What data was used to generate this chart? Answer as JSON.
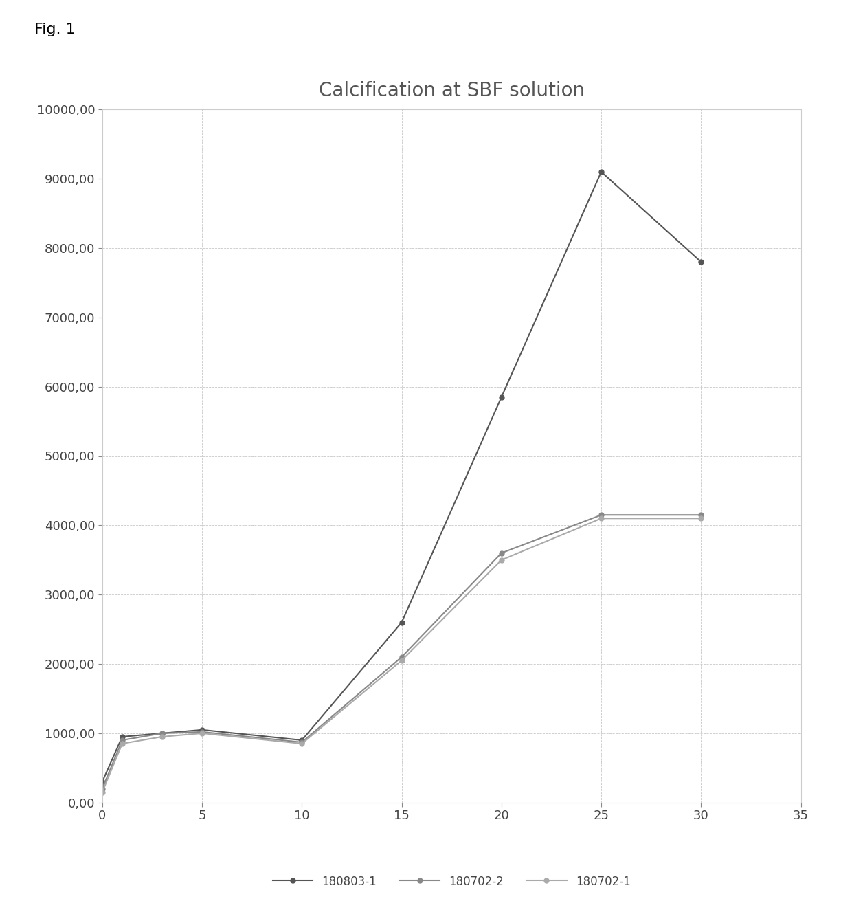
{
  "title": "Calcification at SBF solution",
  "fig_label": "Fig. 1",
  "series": [
    {
      "label": "180803-1",
      "x": [
        0,
        1,
        3,
        5,
        10,
        15,
        20,
        25,
        30
      ],
      "y": [
        300,
        950,
        1000,
        1050,
        900,
        2600,
        5850,
        9100,
        7800
      ],
      "color": "#555555",
      "marker": "o",
      "linewidth": 1.5
    },
    {
      "label": "180702-2",
      "x": [
        0,
        1,
        3,
        5,
        10,
        15,
        20,
        25,
        30
      ],
      "y": [
        200,
        900,
        1000,
        1020,
        870,
        2100,
        3600,
        4150,
        4150
      ],
      "color": "#888888",
      "marker": "o",
      "linewidth": 1.5
    },
    {
      "label": "180702-1",
      "x": [
        0,
        1,
        3,
        5,
        10,
        15,
        20,
        25,
        30
      ],
      "y": [
        150,
        850,
        950,
        1000,
        850,
        2050,
        3500,
        4100,
        4100
      ],
      "color": "#aaaaaa",
      "marker": "o",
      "linewidth": 1.5
    }
  ],
  "xlim": [
    0,
    35
  ],
  "ylim": [
    0,
    10000
  ],
  "xticks": [
    0,
    5,
    10,
    15,
    20,
    25,
    30,
    35
  ],
  "yticks": [
    0,
    1000,
    2000,
    3000,
    4000,
    5000,
    6000,
    7000,
    8000,
    9000,
    10000
  ],
  "grid_color": "#c8c8c8",
  "background_color": "#ffffff",
  "plot_bg_color": "#ffffff",
  "title_fontsize": 20,
  "tick_fontsize": 13,
  "legend_fontsize": 12,
  "fig_label_fontsize": 16
}
